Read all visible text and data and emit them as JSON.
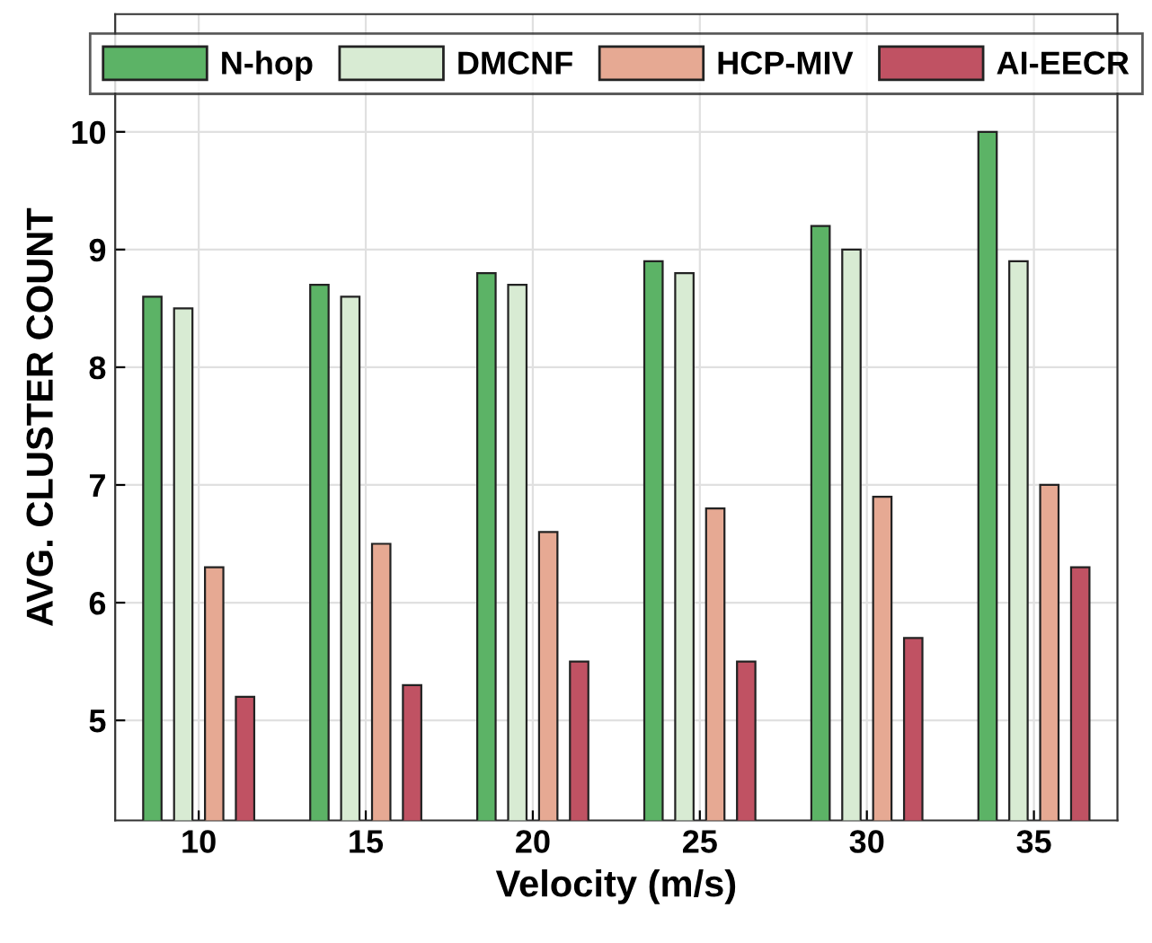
{
  "chart_data": {
    "type": "bar",
    "xlabel": "Velocity (m/s)",
    "ylabel": "AVG. CLUSTER COUNT",
    "categories": [
      "10",
      "15",
      "20",
      "25",
      "30",
      "35"
    ],
    "series": [
      {
        "name": "N-hop",
        "color": "#5cb366",
        "values": [
          8.6,
          8.7,
          8.8,
          8.9,
          9.2,
          10.0
        ]
      },
      {
        "name": "DMCNF",
        "color": "#d8ebd3",
        "values": [
          8.5,
          8.6,
          8.7,
          8.8,
          9.0,
          8.9
        ]
      },
      {
        "name": "HCP-MIV",
        "color": "#e6a993",
        "values": [
          6.3,
          6.5,
          6.6,
          6.8,
          6.9,
          7.0
        ]
      },
      {
        "name": "AI-EECR",
        "color": "#c05263",
        "values": [
          5.2,
          5.3,
          5.5,
          5.5,
          5.7,
          6.3
        ]
      }
    ],
    "ylim": [
      4.15,
      11.0
    ],
    "yticks": [
      5,
      6,
      7,
      8,
      9,
      10
    ],
    "grid": true,
    "legend": "top"
  }
}
